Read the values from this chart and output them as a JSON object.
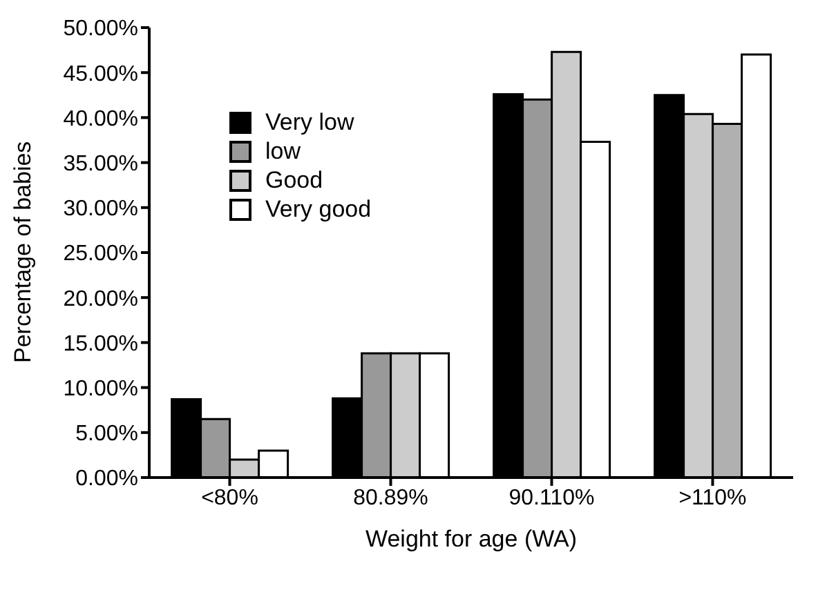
{
  "chart_data": {
    "type": "bar",
    "xlabel": "Weight for age (WA)",
    "ylabel": "Percentage of babies",
    "categories": [
      "<80%",
      "80.89%",
      "90.110%",
      ">110%"
    ],
    "series": [
      {
        "name": "Very low",
        "color": "#000000",
        "values": [
          8.7,
          8.8,
          42.6,
          42.5
        ]
      },
      {
        "name": "low",
        "color": "#999999",
        "colors": [
          "#999999",
          "#999999",
          "#999999",
          "#cccccc"
        ],
        "values": [
          6.5,
          13.8,
          42.0,
          40.4
        ]
      },
      {
        "name": "Good",
        "color": "#cccccc",
        "colors": [
          "#cccccc",
          "#cccccc",
          "#cccccc",
          "#b0b0b0"
        ],
        "values": [
          2.0,
          13.8,
          47.3,
          39.3
        ]
      },
      {
        "name": "Very good",
        "color": "#ffffff",
        "values": [
          3.0,
          13.8,
          37.3,
          47.0
        ]
      }
    ],
    "ylim": [
      0,
      50
    ],
    "yticks": [
      {
        "value": 0,
        "label": "0.00%"
      },
      {
        "value": 5,
        "label": "5.00%"
      },
      {
        "value": 10,
        "label": "10.00%"
      },
      {
        "value": 15,
        "label": "15.00%"
      },
      {
        "value": 20,
        "label": "20.00%"
      },
      {
        "value": 25,
        "label": "25.00%"
      },
      {
        "value": 30,
        "label": "30.00%"
      },
      {
        "value": 35,
        "label": "35.00%"
      },
      {
        "value": 40,
        "label": "40.00%"
      },
      {
        "value": 45,
        "label": "45.00%"
      },
      {
        "value": 50,
        "label": "50.00%"
      }
    ],
    "grid": false,
    "legend": "top left"
  }
}
